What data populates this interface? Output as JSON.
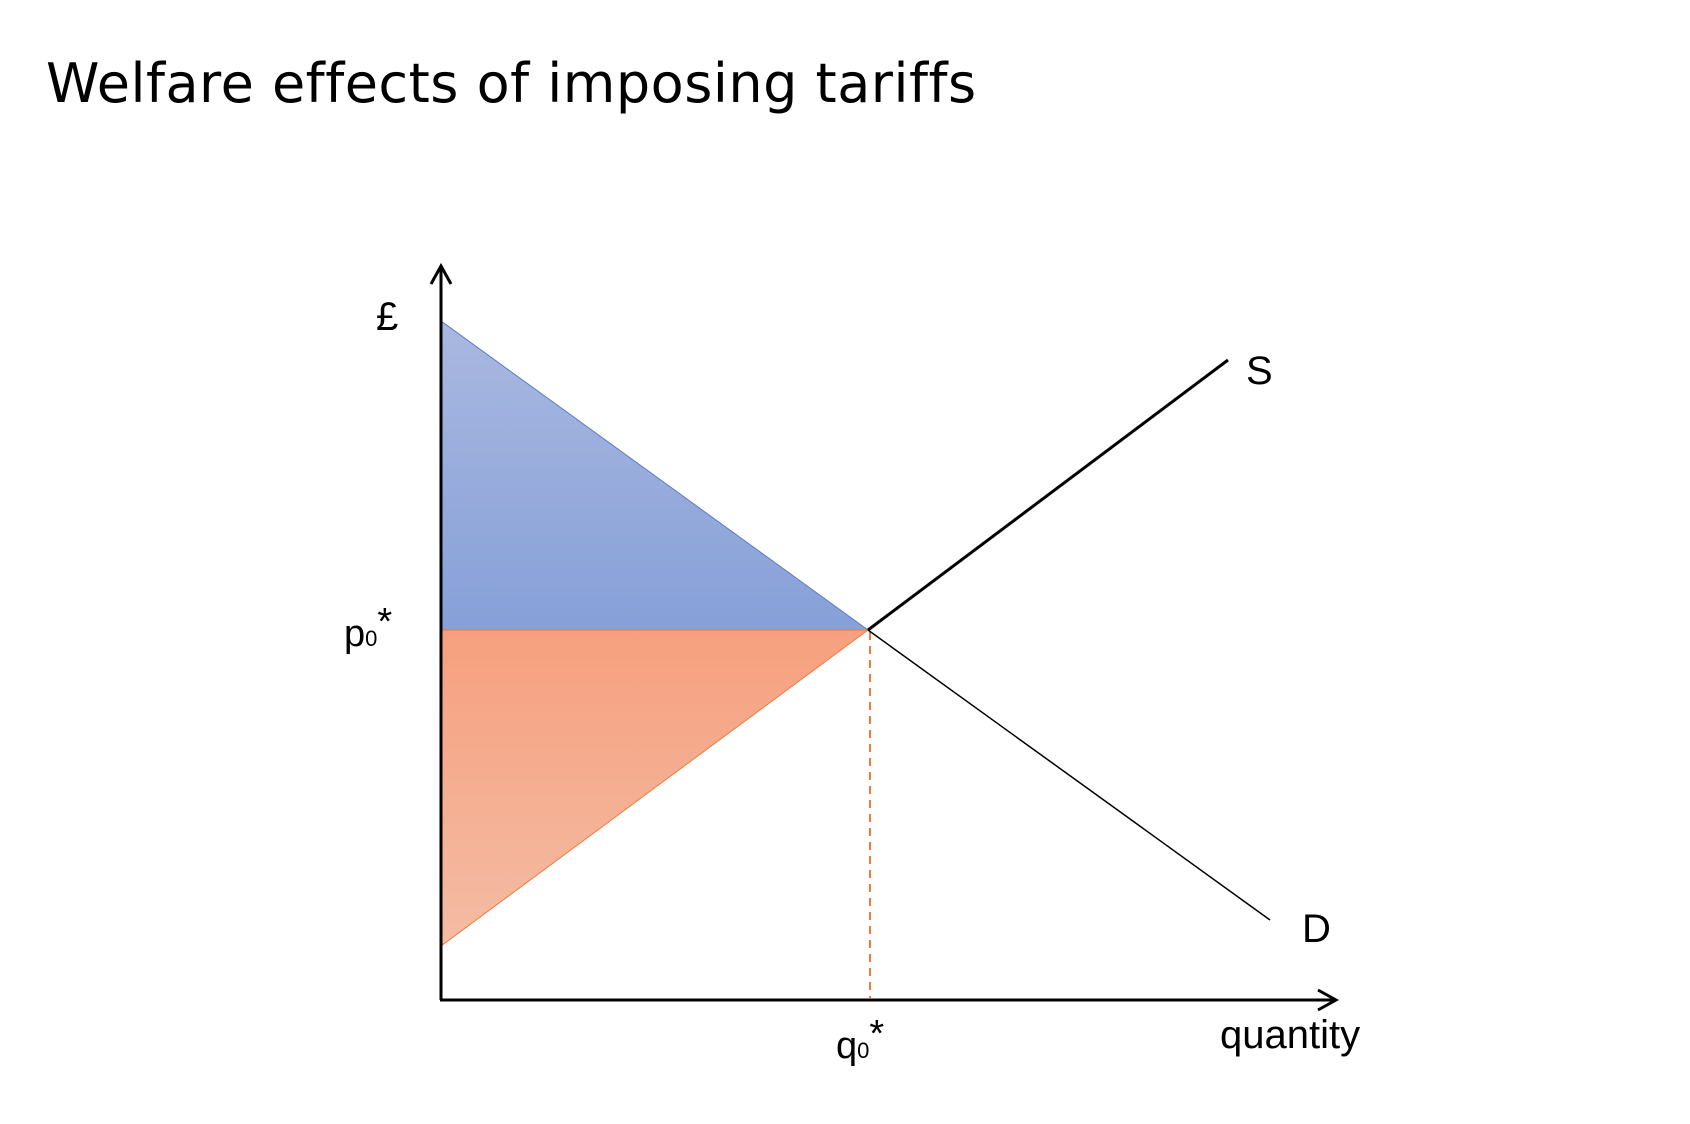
{
  "title": "Welfare effects of imposing tariffs",
  "chart_data": {
    "type": "supply-demand diagram",
    "y_axis_label": "£",
    "x_axis_label": "quantity",
    "equilibrium_price_label": "p",
    "equilibrium_price_subscript": "0",
    "equilibrium_price_suffix": "*",
    "equilibrium_quantity_label": "q",
    "equilibrium_quantity_subscript": "0",
    "equilibrium_quantity_suffix": "*",
    "curves": [
      {
        "id": "supply",
        "label": "S"
      },
      {
        "id": "demand",
        "label": "D"
      }
    ],
    "regions": [
      {
        "id": "consumer-surplus",
        "color": "#8aa0d8"
      },
      {
        "id": "producer-surplus",
        "color": "#f5a07e"
      }
    ],
    "colors": {
      "consumer_surplus_top": "#aab8e0",
      "consumer_surplus_bottom": "#86a0d8",
      "producer_surplus_top": "#f6a07e",
      "producer_surplus_bottom": "#f4bca4",
      "guide_line": "#f07a3a",
      "axis": "#000000"
    }
  }
}
